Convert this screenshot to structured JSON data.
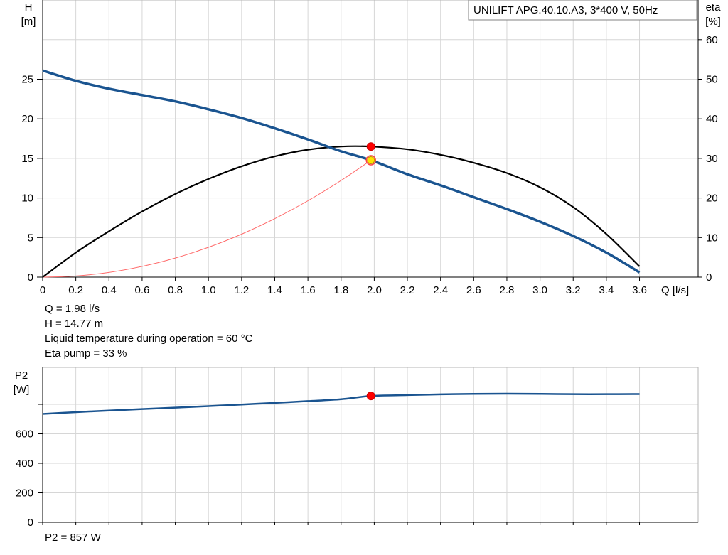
{
  "chart_data": [
    {
      "type": "line",
      "title": "UNILIFT APG.40.10.A3, 3*400 V, 50Hz",
      "xlabel": "Q [l/s]",
      "ylabel_left": [
        "H",
        "[m]"
      ],
      "ylabel_right": [
        "eta",
        "[%]"
      ],
      "xlim": [
        0,
        3.6
      ],
      "ylim_left": [
        0,
        30
      ],
      "ylim_right": [
        0,
        60
      ],
      "x_ticks": [
        "0",
        "0.2",
        "0.4",
        "0.6",
        "0.8",
        "1.0",
        "1.2",
        "1.4",
        "1.6",
        "1.8",
        "2.0",
        "2.2",
        "2.4",
        "2.6",
        "2.8",
        "3.0",
        "3.2",
        "3.4",
        "3.6"
      ],
      "y_ticks_left": [
        "0",
        "5",
        "10",
        "15",
        "20",
        "25"
      ],
      "y_ticks_right": [
        "0",
        "10",
        "20",
        "30",
        "40",
        "50",
        "60"
      ],
      "grid": true,
      "series": [
        {
          "axis": "left",
          "color": "#1a5490",
          "x": [
            0,
            0.2,
            0.4,
            0.6,
            0.8,
            1.0,
            1.2,
            1.4,
            1.6,
            1.8,
            1.98,
            2.2,
            2.4,
            2.6,
            2.8,
            3.0,
            3.2,
            3.4,
            3.6
          ],
          "values": [
            26.1,
            24.8,
            23.8,
            23.0,
            22.2,
            21.2,
            20.1,
            18.8,
            17.4,
            15.9,
            14.77,
            13.0,
            11.6,
            10.1,
            8.6,
            7.0,
            5.2,
            3.1,
            0.6
          ]
        },
        {
          "axis": "right",
          "color": "#000000",
          "x": [
            0,
            0.2,
            0.4,
            0.6,
            0.8,
            1.0,
            1.2,
            1.4,
            1.6,
            1.8,
            1.98,
            2.2,
            2.4,
            2.6,
            2.8,
            3.0,
            3.2,
            3.4,
            3.6
          ],
          "values": [
            0,
            6.2,
            11.6,
            16.6,
            21.0,
            24.8,
            28.0,
            30.5,
            32.2,
            33.0,
            33.0,
            32.3,
            30.9,
            28.9,
            26.3,
            22.7,
            17.7,
            10.9,
            2.7
          ]
        },
        {
          "axis": "left",
          "color": "#ff6a6a",
          "x": [
            0,
            0.2,
            0.4,
            0.6,
            0.8,
            1.0,
            1.2,
            1.4,
            1.6,
            1.8,
            1.98
          ],
          "values": [
            0,
            0.15,
            0.6,
            1.36,
            2.41,
            3.77,
            5.43,
            7.39,
            9.65,
            12.21,
            14.77
          ]
        }
      ],
      "operating_point": {
        "x": 1.98,
        "head": 14.77,
        "eta": 33
      }
    },
    {
      "type": "line",
      "ylabel": [
        "P2",
        "[W]"
      ],
      "xlim": [
        0,
        3.6
      ],
      "ylim": [
        0,
        1000
      ],
      "y_ticks": [
        "0",
        "200",
        "400",
        "600"
      ],
      "grid": true,
      "series": [
        {
          "color": "#1a5490",
          "x": [
            0,
            0.2,
            0.4,
            0.6,
            0.8,
            1.0,
            1.2,
            1.4,
            1.6,
            1.8,
            1.98,
            2.2,
            2.4,
            2.6,
            2.8,
            3.0,
            3.2,
            3.4,
            3.6
          ],
          "values": [
            735,
            747,
            758,
            768,
            778,
            788,
            799,
            810,
            822,
            835,
            857,
            863,
            868,
            871,
            872,
            871,
            869,
            869,
            870
          ]
        }
      ],
      "operating_point": {
        "x": 1.98,
        "value": 857
      }
    }
  ],
  "readout": {
    "q": "Q = 1.98 l/s",
    "h": "H = 14.77 m",
    "temperature": "Liquid temperature during operation = 60 °C",
    "eta": "Eta pump = 33 %",
    "p2": "P2 = 857 W"
  }
}
